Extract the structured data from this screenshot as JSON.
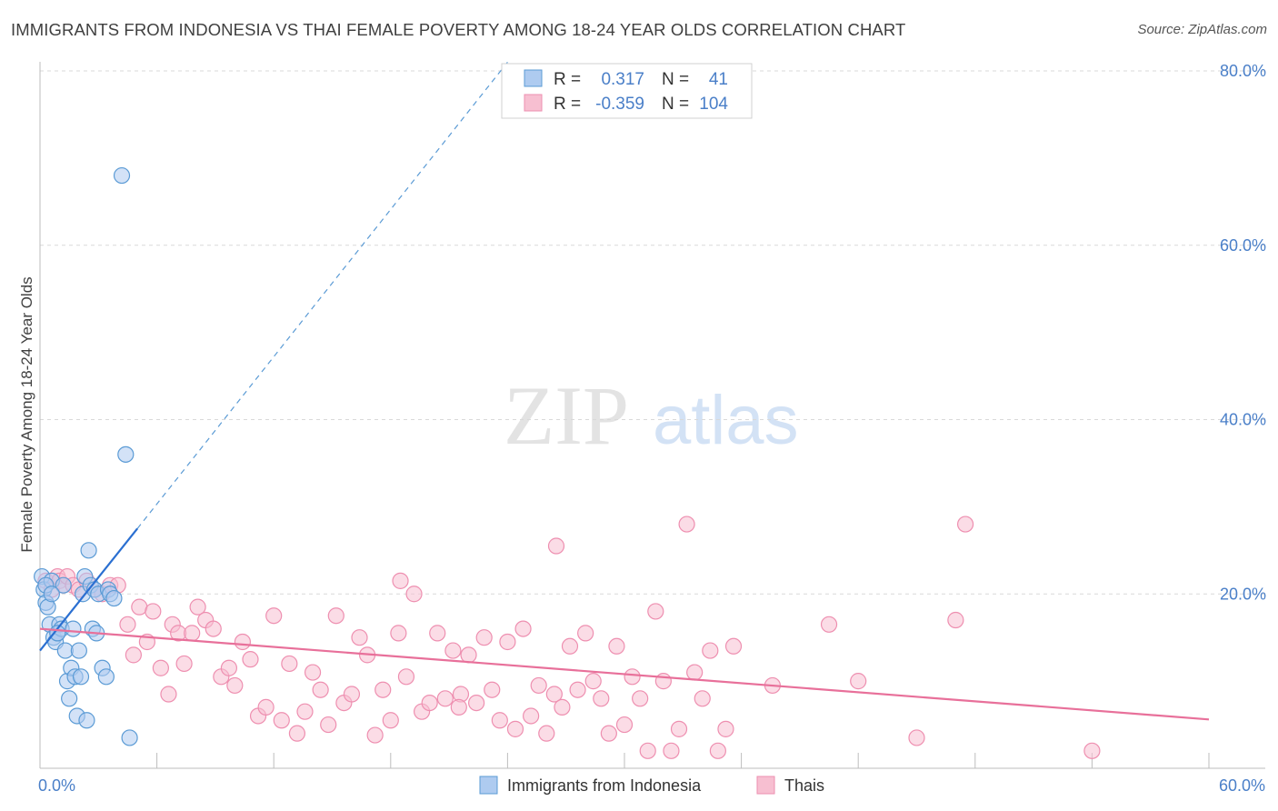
{
  "title": "IMMIGRANTS FROM INDONESIA VS THAI FEMALE POVERTY AMONG 18-24 YEAR OLDS CORRELATION CHART",
  "source": "Source: ZipAtlas.com",
  "watermark": {
    "zip": "ZIP",
    "atlas": "atlas"
  },
  "legend_box": {
    "rows": [
      {
        "r_label": "R =",
        "r_value": "0.317",
        "n_label": "N =",
        "n_value": "41"
      },
      {
        "r_label": "R =",
        "r_value": "-0.359",
        "n_label": "N =",
        "n_value": "104"
      }
    ]
  },
  "colors": {
    "blue": "#5b9bd5",
    "blue_fill": "#aecbf0",
    "blue_line": "#2a6fd1",
    "pink": "#ee8fb0",
    "pink_fill": "#f7bfd1",
    "pink_line": "#e8709a",
    "tick_text": "#4a7fc8",
    "grid": "#d9d9d9"
  },
  "chart_data": {
    "type": "scatter",
    "xlabel": "",
    "ylabel": "Female Poverty Among 18-24 Year Olds",
    "xlim": [
      0,
      60
    ],
    "ylim": [
      0,
      80
    ],
    "x_tick_labels": [
      {
        "value": 0,
        "label": "0.0%"
      },
      {
        "value": 60,
        "label": "60.0%"
      }
    ],
    "y_tick_labels": [
      {
        "value": 20,
        "label": "20.0%"
      },
      {
        "value": 40,
        "label": "40.0%"
      },
      {
        "value": 60,
        "label": "60.0%"
      },
      {
        "value": 80,
        "label": "80.0%"
      }
    ],
    "grid": true,
    "legend_position": "bottom",
    "series": [
      {
        "name": "Immigrants from Indonesia",
        "color": "#5b9bd5",
        "trend": {
          "x0": 0,
          "y0": 13.5,
          "x1": 5.0,
          "y1": 27.5,
          "dash_to_x": 24,
          "dash_to_y": 81
        },
        "points": [
          [
            0.1,
            22.0
          ],
          [
            0.2,
            20.5
          ],
          [
            0.3,
            19.0
          ],
          [
            0.4,
            18.5
          ],
          [
            0.5,
            16.5
          ],
          [
            0.6,
            21.5
          ],
          [
            0.7,
            15.0
          ],
          [
            0.8,
            14.5
          ],
          [
            0.9,
            15.5
          ],
          [
            1.0,
            16.5
          ],
          [
            1.1,
            16.0
          ],
          [
            1.2,
            21.0
          ],
          [
            1.3,
            13.5
          ],
          [
            1.4,
            10.0
          ],
          [
            1.5,
            8.0
          ],
          [
            1.6,
            11.5
          ],
          [
            1.7,
            16.0
          ],
          [
            1.8,
            10.5
          ],
          [
            1.9,
            6.0
          ],
          [
            2.0,
            13.5
          ],
          [
            2.1,
            10.5
          ],
          [
            2.2,
            20.0
          ],
          [
            2.3,
            22.0
          ],
          [
            2.4,
            5.5
          ],
          [
            2.5,
            25.0
          ],
          [
            2.6,
            21.0
          ],
          [
            2.7,
            16.0
          ],
          [
            2.8,
            20.5
          ],
          [
            2.9,
            15.5
          ],
          [
            3.0,
            20.0
          ],
          [
            3.2,
            11.5
          ],
          [
            3.4,
            10.5
          ],
          [
            3.5,
            20.5
          ],
          [
            3.6,
            20.0
          ],
          [
            3.8,
            19.5
          ],
          [
            4.2,
            68.0
          ],
          [
            4.4,
            36.0
          ],
          [
            4.6,
            3.5
          ],
          [
            0.3,
            21.0
          ],
          [
            0.6,
            20.0
          ],
          [
            0.9,
            15.5
          ]
        ]
      },
      {
        "name": "Thais",
        "color": "#ee8fb0",
        "trend": {
          "x0": 0,
          "y0": 16.0,
          "x1": 60,
          "y1": 5.6
        },
        "points": [
          [
            0.3,
            21.5
          ],
          [
            0.6,
            20.5
          ],
          [
            0.9,
            22.0
          ],
          [
            1.0,
            21.5
          ],
          [
            1.2,
            21.0
          ],
          [
            1.4,
            22.0
          ],
          [
            1.7,
            21.0
          ],
          [
            2.0,
            20.5
          ],
          [
            2.4,
            21.5
          ],
          [
            2.8,
            20.5
          ],
          [
            3.2,
            20.0
          ],
          [
            3.6,
            21.0
          ],
          [
            4.0,
            21.0
          ],
          [
            4.5,
            16.5
          ],
          [
            4.8,
            13.0
          ],
          [
            5.1,
            18.5
          ],
          [
            5.5,
            14.5
          ],
          [
            5.8,
            18.0
          ],
          [
            6.2,
            11.5
          ],
          [
            6.6,
            8.5
          ],
          [
            6.8,
            16.5
          ],
          [
            7.1,
            15.5
          ],
          [
            7.4,
            12.0
          ],
          [
            7.8,
            15.5
          ],
          [
            8.1,
            18.5
          ],
          [
            8.5,
            17.0
          ],
          [
            8.9,
            16.0
          ],
          [
            9.3,
            10.5
          ],
          [
            9.7,
            11.5
          ],
          [
            10.0,
            9.5
          ],
          [
            10.4,
            14.5
          ],
          [
            10.8,
            12.5
          ],
          [
            11.2,
            6.0
          ],
          [
            11.6,
            7.0
          ],
          [
            12.0,
            17.5
          ],
          [
            12.4,
            5.5
          ],
          [
            12.8,
            12.0
          ],
          [
            13.2,
            4.0
          ],
          [
            13.6,
            6.5
          ],
          [
            14.0,
            11.0
          ],
          [
            14.4,
            9.0
          ],
          [
            14.8,
            5.0
          ],
          [
            15.2,
            17.5
          ],
          [
            15.6,
            7.5
          ],
          [
            16.0,
            8.5
          ],
          [
            16.4,
            15.0
          ],
          [
            16.8,
            13.0
          ],
          [
            17.2,
            3.8
          ],
          [
            17.6,
            9.0
          ],
          [
            18.0,
            5.5
          ],
          [
            18.4,
            15.5
          ],
          [
            18.8,
            10.5
          ],
          [
            19.2,
            20.0
          ],
          [
            19.6,
            6.5
          ],
          [
            20.0,
            7.5
          ],
          [
            20.4,
            15.5
          ],
          [
            20.8,
            8.0
          ],
          [
            21.2,
            13.5
          ],
          [
            21.6,
            8.5
          ],
          [
            22.0,
            13.0
          ],
          [
            22.4,
            7.5
          ],
          [
            22.8,
            15.0
          ],
          [
            23.2,
            9.0
          ],
          [
            23.6,
            5.5
          ],
          [
            24.0,
            14.5
          ],
          [
            24.4,
            4.5
          ],
          [
            24.8,
            16.0
          ],
          [
            25.2,
            6.0
          ],
          [
            25.6,
            9.5
          ],
          [
            26.0,
            4.0
          ],
          [
            26.4,
            8.5
          ],
          [
            26.8,
            7.0
          ],
          [
            27.2,
            14.0
          ],
          [
            27.6,
            9.0
          ],
          [
            28.0,
            15.5
          ],
          [
            28.4,
            10.0
          ],
          [
            28.8,
            8.0
          ],
          [
            29.2,
            4.0
          ],
          [
            29.6,
            14.0
          ],
          [
            30.0,
            5.0
          ],
          [
            30.4,
            10.5
          ],
          [
            30.8,
            8.0
          ],
          [
            31.2,
            2.0
          ],
          [
            31.6,
            18.0
          ],
          [
            32.0,
            10.0
          ],
          [
            32.4,
            2.0
          ],
          [
            32.8,
            4.5
          ],
          [
            33.2,
            28.0
          ],
          [
            33.6,
            11.0
          ],
          [
            34.0,
            8.0
          ],
          [
            34.4,
            13.5
          ],
          [
            34.8,
            2.0
          ],
          [
            35.2,
            4.5
          ],
          [
            35.6,
            14.0
          ],
          [
            37.6,
            9.5
          ],
          [
            40.5,
            16.5
          ],
          [
            42.0,
            10.0
          ],
          [
            45.0,
            3.5
          ],
          [
            47.0,
            17.0
          ],
          [
            47.5,
            28.0
          ],
          [
            54.0,
            2.0
          ],
          [
            26.5,
            25.5
          ],
          [
            18.5,
            21.5
          ],
          [
            21.5,
            7.0
          ]
        ]
      }
    ]
  }
}
